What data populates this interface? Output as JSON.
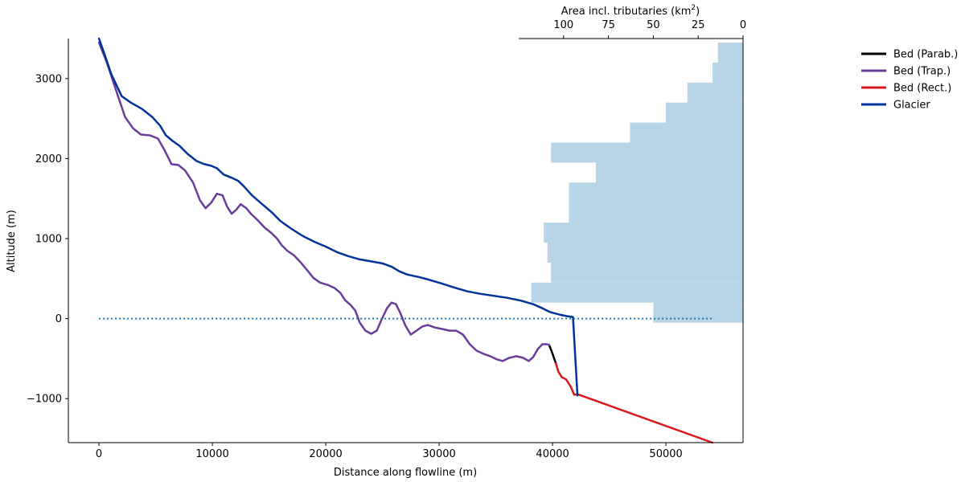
{
  "chart_data": {
    "type": "line",
    "xlabel": "Distance along flowline (m)",
    "ylabel": "Altitude (m)",
    "xlim": [
      -2700,
      56800
    ],
    "ylim": [
      -1550,
      3500
    ],
    "xticks": [
      0,
      10000,
      20000,
      30000,
      40000,
      50000
    ],
    "xtick_labels": [
      "0",
      "10000",
      "20000",
      "30000",
      "40000",
      "50000"
    ],
    "yticks": [
      -1000,
      0,
      1000,
      2000,
      3000
    ],
    "ytick_labels": [
      "−1000",
      "0",
      "1000",
      "2000",
      "3000"
    ],
    "grid": false,
    "legend_position": "upper-right-outside",
    "series": [
      {
        "name": "Bed (Parab.)",
        "color": "#000000",
        "points": [
          [
            39700,
            -330
          ],
          [
            39900,
            -400
          ],
          [
            40100,
            -480
          ],
          [
            40300,
            -560
          ]
        ]
      },
      {
        "name": "Bed (Trap.)",
        "color": "#6a3d9a",
        "points": [
          [
            0,
            3450
          ],
          [
            700,
            3200
          ],
          [
            1400,
            2900
          ],
          [
            2300,
            2520
          ],
          [
            3000,
            2380
          ],
          [
            3700,
            2300
          ],
          [
            4500,
            2290
          ],
          [
            5200,
            2250
          ],
          [
            5800,
            2100
          ],
          [
            6400,
            1930
          ],
          [
            7000,
            1920
          ],
          [
            7600,
            1850
          ],
          [
            8300,
            1700
          ],
          [
            8900,
            1480
          ],
          [
            9400,
            1380
          ],
          [
            9900,
            1450
          ],
          [
            10400,
            1560
          ],
          [
            10900,
            1540
          ],
          [
            11300,
            1400
          ],
          [
            11700,
            1310
          ],
          [
            12100,
            1360
          ],
          [
            12500,
            1430
          ],
          [
            13000,
            1380
          ],
          [
            13400,
            1310
          ],
          [
            14000,
            1230
          ],
          [
            14600,
            1140
          ],
          [
            15200,
            1070
          ],
          [
            15700,
            1000
          ],
          [
            16100,
            920
          ],
          [
            16600,
            850
          ],
          [
            17200,
            790
          ],
          [
            17800,
            700
          ],
          [
            18400,
            600
          ],
          [
            18900,
            510
          ],
          [
            19500,
            450
          ],
          [
            20200,
            420
          ],
          [
            20800,
            380
          ],
          [
            21300,
            320
          ],
          [
            21700,
            230
          ],
          [
            22200,
            170
          ],
          [
            22600,
            100
          ],
          [
            23000,
            -50
          ],
          [
            23500,
            -150
          ],
          [
            24000,
            -190
          ],
          [
            24500,
            -150
          ],
          [
            24900,
            -20
          ],
          [
            25400,
            130
          ],
          [
            25800,
            200
          ],
          [
            26200,
            180
          ],
          [
            26600,
            60
          ],
          [
            27000,
            -80
          ],
          [
            27500,
            -200
          ],
          [
            28000,
            -150
          ],
          [
            28500,
            -100
          ],
          [
            29000,
            -80
          ],
          [
            29600,
            -110
          ],
          [
            30300,
            -130
          ],
          [
            30900,
            -150
          ],
          [
            31500,
            -150
          ],
          [
            32100,
            -200
          ],
          [
            32700,
            -320
          ],
          [
            33300,
            -400
          ],
          [
            33900,
            -440
          ],
          [
            34500,
            -470
          ],
          [
            35100,
            -510
          ],
          [
            35600,
            -530
          ],
          [
            36200,
            -490
          ],
          [
            36800,
            -470
          ],
          [
            37400,
            -490
          ],
          [
            37900,
            -530
          ],
          [
            38300,
            -480
          ],
          [
            38700,
            -380
          ],
          [
            39100,
            -320
          ],
          [
            39500,
            -320
          ],
          [
            39700,
            -330
          ]
        ]
      },
      {
        "name": "Bed (Rect.)",
        "color": "#d7191c",
        "points": [
          [
            40300,
            -560
          ],
          [
            40500,
            -660
          ],
          [
            40800,
            -730
          ],
          [
            41200,
            -760
          ],
          [
            41600,
            -850
          ],
          [
            41900,
            -950
          ],
          [
            42300,
            -950
          ],
          [
            54100,
            -1550
          ]
        ]
      },
      {
        "name": "Glacier",
        "color": "#003399",
        "points": [
          [
            0,
            3500
          ],
          [
            500,
            3300
          ],
          [
            1100,
            3050
          ],
          [
            2000,
            2780
          ],
          [
            2800,
            2700
          ],
          [
            3800,
            2620
          ],
          [
            4700,
            2520
          ],
          [
            5400,
            2410
          ],
          [
            5900,
            2290
          ],
          [
            6500,
            2220
          ],
          [
            7100,
            2160
          ],
          [
            7800,
            2060
          ],
          [
            8600,
            1970
          ],
          [
            9300,
            1930
          ],
          [
            9900,
            1910
          ],
          [
            10400,
            1880
          ],
          [
            11000,
            1800
          ],
          [
            11700,
            1760
          ],
          [
            12300,
            1720
          ],
          [
            12800,
            1650
          ],
          [
            13500,
            1540
          ],
          [
            14400,
            1430
          ],
          [
            15300,
            1320
          ],
          [
            16000,
            1220
          ],
          [
            17000,
            1120
          ],
          [
            18000,
            1030
          ],
          [
            19000,
            960
          ],
          [
            20000,
            900
          ],
          [
            21000,
            830
          ],
          [
            22000,
            780
          ],
          [
            23000,
            740
          ],
          [
            24000,
            715
          ],
          [
            25000,
            690
          ],
          [
            25800,
            650
          ],
          [
            26500,
            590
          ],
          [
            27200,
            550
          ],
          [
            28200,
            520
          ],
          [
            29000,
            490
          ],
          [
            30200,
            440
          ],
          [
            31300,
            390
          ],
          [
            32500,
            340
          ],
          [
            33600,
            310
          ],
          [
            34800,
            285
          ],
          [
            36000,
            260
          ],
          [
            37200,
            225
          ],
          [
            38300,
            180
          ],
          [
            39100,
            130
          ],
          [
            39800,
            80
          ],
          [
            40600,
            50
          ],
          [
            41300,
            30
          ],
          [
            41800,
            20
          ],
          [
            42200,
            -960
          ]
        ]
      },
      {
        "name": "",
        "color": "#1f77b4",
        "style": "dotted",
        "points": [
          [
            0,
            0
          ],
          [
            54100,
            0
          ]
        ]
      }
    ],
    "area_histogram": {
      "title": "Area incl. tributaries (km",
      "title_sup": "2",
      "title_end": ")",
      "color": "#b8d4e7",
      "xlim": [
        125,
        0
      ],
      "xticks": [
        100,
        75,
        50,
        25,
        0
      ],
      "xtick_labels": [
        "100",
        "75",
        "50",
        "25",
        "0"
      ],
      "bin_edges": [
        -50,
        200,
        450,
        700,
        950,
        1200,
        1450,
        1700,
        1950,
        2200,
        2450,
        2700,
        2950,
        3200,
        3450
      ],
      "values": [
        50,
        118,
        107,
        109,
        111,
        97,
        97,
        82,
        107,
        63,
        43,
        31,
        17,
        14,
        3
      ]
    }
  }
}
